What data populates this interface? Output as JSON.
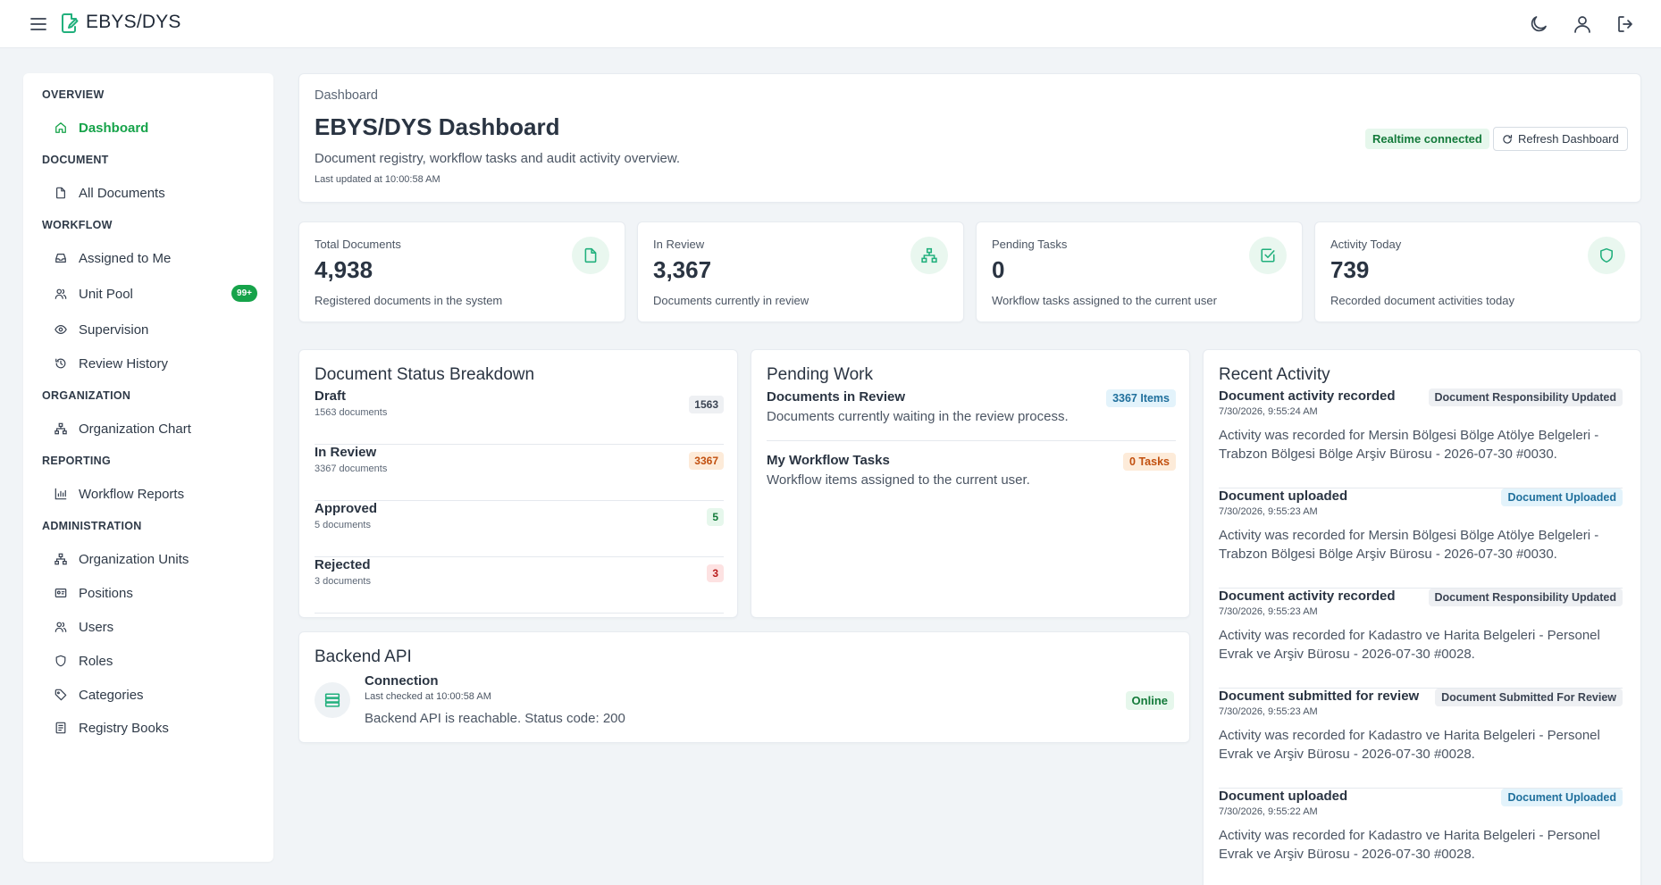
{
  "app": {
    "title": "EBYS/DYS"
  },
  "colors": {
    "accent": "#16a34a",
    "icon_accent": "#22b07d",
    "background": "#f1f4f7"
  },
  "topbar_icons": [
    "menu-icon",
    "logo-icon",
    "moon-icon",
    "user-icon",
    "logout-icon"
  ],
  "sidebar": {
    "sections": [
      {
        "title": "OVERVIEW",
        "items": [
          {
            "label": "Dashboard",
            "icon": "home-icon",
            "active": true
          }
        ]
      },
      {
        "title": "DOCUMENT",
        "items": [
          {
            "label": "All Documents",
            "icon": "file-icon"
          }
        ]
      },
      {
        "title": "WORKFLOW",
        "items": [
          {
            "label": "Assigned to Me",
            "icon": "inbox-icon"
          },
          {
            "label": "Unit Pool",
            "icon": "users-icon",
            "badge": "99+"
          },
          {
            "label": "Supervision",
            "icon": "eye-icon"
          },
          {
            "label": "Review History",
            "icon": "history-icon"
          }
        ]
      },
      {
        "title": "ORGANIZATION",
        "items": [
          {
            "label": "Organization Chart",
            "icon": "org-chart-icon"
          }
        ]
      },
      {
        "title": "REPORTING",
        "items": [
          {
            "label": "Workflow Reports",
            "icon": "bar-chart-icon"
          }
        ]
      },
      {
        "title": "ADMINISTRATION",
        "items": [
          {
            "label": "Organization Units",
            "icon": "org-units-icon"
          },
          {
            "label": "Positions",
            "icon": "id-card-icon"
          },
          {
            "label": "Users",
            "icon": "users-icon"
          },
          {
            "label": "Roles",
            "icon": "shield-icon"
          },
          {
            "label": "Categories",
            "icon": "tag-icon"
          },
          {
            "label": "Registry Books",
            "icon": "book-icon"
          }
        ]
      }
    ]
  },
  "header": {
    "breadcrumb": "Dashboard",
    "title": "EBYS/DYS Dashboard",
    "description": "Document registry, workflow tasks and audit activity overview.",
    "last_updated": "Last updated at 10:00:58 AM",
    "realtime": "Realtime connected",
    "refresh_label": "Refresh Dashboard"
  },
  "stats": [
    {
      "label": "Total Documents",
      "value": "4,938",
      "sub": "Registered documents in the system",
      "icon": "file-icon"
    },
    {
      "label": "In Review",
      "value": "3,367",
      "sub": "Documents currently in review",
      "icon": "org-chart-icon"
    },
    {
      "label": "Pending Tasks",
      "value": "0",
      "sub": "Workflow tasks assigned to the current user",
      "icon": "check-square-icon"
    },
    {
      "label": "Activity Today",
      "value": "739",
      "sub": "Recorded document activities today",
      "icon": "shield-icon"
    }
  ],
  "status_breakdown": {
    "title": "Document Status Breakdown",
    "rows": [
      {
        "name": "Draft",
        "count_text": "1563 documents",
        "badge": "1563",
        "badge_bg": "#eef0f3",
        "badge_fg": "#3b4453"
      },
      {
        "name": "In Review",
        "count_text": "3367 documents",
        "badge": "3367",
        "badge_bg": "#fdebd9",
        "badge_fg": "#c2500f"
      },
      {
        "name": "Approved",
        "count_text": "5 documents",
        "badge": "5",
        "badge_bg": "#e6f7ec",
        "badge_fg": "#137a3a"
      },
      {
        "name": "Rejected",
        "count_text": "3 documents",
        "badge": "3",
        "badge_bg": "#fde2e2",
        "badge_fg": "#b91c1c"
      }
    ]
  },
  "pending_work": {
    "title": "Pending Work",
    "rows": [
      {
        "name": "Documents in Review",
        "desc": "Documents currently waiting in the review process.",
        "badge": "3367 Items",
        "badge_bg": "#e3f3fb",
        "badge_fg": "#1f6f9c"
      },
      {
        "name": "My Workflow Tasks",
        "desc": "Workflow items assigned to the current user.",
        "badge": "0 Tasks",
        "badge_bg": "#fdebd9",
        "badge_fg": "#c2500f"
      }
    ]
  },
  "backend_api": {
    "title": "Backend API",
    "name": "Connection",
    "last_checked": "Last checked at 10:00:58 AM",
    "message": "Backend API is reachable. Status code: 200",
    "status": "Online",
    "icon": "server-icon"
  },
  "recent_activity": {
    "title": "Recent Activity",
    "items": [
      {
        "title": "Document activity recorded",
        "time": "7/30/2026, 9:55:24 AM",
        "badge": "Document Responsibility Updated",
        "badge_style": "gray",
        "text": "Activity was recorded for Mersin Bölgesi Bölge Atölye Belgeleri - Trabzon Bölgesi Bölge Arşiv Bürosu - 2026-07-30 #0030."
      },
      {
        "title": "Document uploaded",
        "time": "7/30/2026, 9:55:23 AM",
        "badge": "Document Uploaded",
        "badge_style": "blue",
        "text": "Activity was recorded for Mersin Bölgesi Bölge Atölye Belgeleri - Trabzon Bölgesi Bölge Arşiv Bürosu - 2026-07-30 #0030."
      },
      {
        "title": "Document activity recorded",
        "time": "7/30/2026, 9:55:23 AM",
        "badge": "Document Responsibility Updated",
        "badge_style": "gray",
        "text": "Activity was recorded for Kadastro ve Harita Belgeleri - Personel Evrak ve Arşiv Bürosu - 2026-07-30 #0028."
      },
      {
        "title": "Document submitted for review",
        "time": "7/30/2026, 9:55:23 AM",
        "badge": "Document Submitted For Review",
        "badge_style": "gray",
        "text": "Activity was recorded for Kadastro ve Harita Belgeleri - Personel Evrak ve Arşiv Bürosu - 2026-07-30 #0028."
      },
      {
        "title": "Document uploaded",
        "time": "7/30/2026, 9:55:22 AM",
        "badge": "Document Uploaded",
        "badge_style": "blue",
        "text": "Activity was recorded for Kadastro ve Harita Belgeleri - Personel Evrak ve Arşiv Bürosu - 2026-07-30 #0028."
      }
    ]
  }
}
